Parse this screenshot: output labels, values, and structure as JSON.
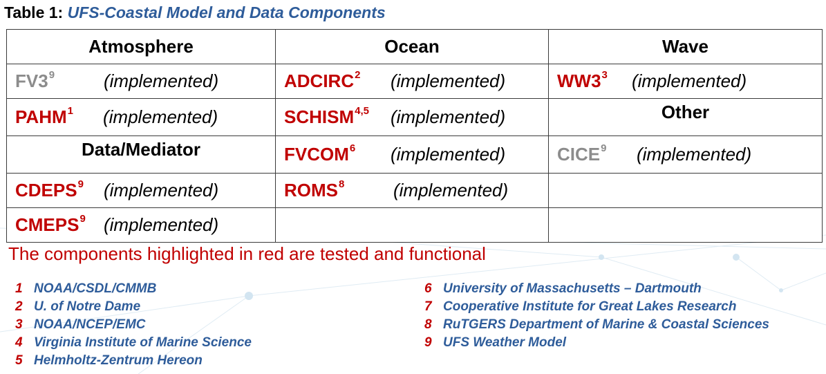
{
  "caption": {
    "prefix": "Table 1:",
    "title": "UFS-Coastal Model and Data Components"
  },
  "table": {
    "headers": [
      "Atmosphere",
      "Ocean",
      "Wave"
    ],
    "status_label": "(implemented)",
    "atmosphere": [
      {
        "name": "FV3",
        "sup": "9",
        "color": "#8c8c8c"
      },
      {
        "name": "PAHM",
        "sup": "1",
        "color": "#c00000"
      }
    ],
    "data_mediator_header": "Data/Mediator",
    "data_mediator": [
      {
        "name": "CDEPS",
        "sup": "9",
        "color": "#c00000"
      },
      {
        "name": "CMEPS",
        "sup": "9",
        "color": "#c00000"
      }
    ],
    "ocean": [
      {
        "name": "ADCIRC",
        "sup": "2",
        "color": "#c00000"
      },
      {
        "name": "SCHISM",
        "sup": "4,5",
        "color": "#c00000"
      },
      {
        "name": "FVCOM",
        "sup": "6",
        "color": "#c00000"
      },
      {
        "name": "ROMS",
        "sup": "8",
        "color": "#c00000"
      }
    ],
    "wave": [
      {
        "name": "WW3",
        "sup": "3",
        "color": "#c00000"
      }
    ],
    "other_header": "Other",
    "other": [
      {
        "name": "CICE",
        "sup": "9",
        "color": "#8c8c8c"
      }
    ]
  },
  "note": "The components highlighted in red are tested and functional",
  "references_left": [
    {
      "num": "1",
      "text": "NOAA/CSDL/CMMB"
    },
    {
      "num": "2",
      "text": "U. of Notre Dame"
    },
    {
      "num": "3",
      "text": "NOAA/NCEP/EMC"
    },
    {
      "num": "4",
      "text": "Virginia Institute of Marine Science"
    },
    {
      "num": "5",
      "text": "Helmholtz-Zentrum Hereon"
    }
  ],
  "references_right": [
    {
      "num": "6",
      "text": "University of Massachusetts – Dartmouth"
    },
    {
      "num": "7",
      "text": "Cooperative Institute for Great Lakes Research"
    },
    {
      "num": "8",
      "text": "RuTGERS Department of Marine & Coastal Sciences"
    },
    {
      "num": "9",
      "text": "UFS Weather Model"
    }
  ],
  "colors": {
    "accent_red": "#c00000",
    "title_blue": "#2e5c9a",
    "inactive_gray": "#8c8c8c"
  }
}
